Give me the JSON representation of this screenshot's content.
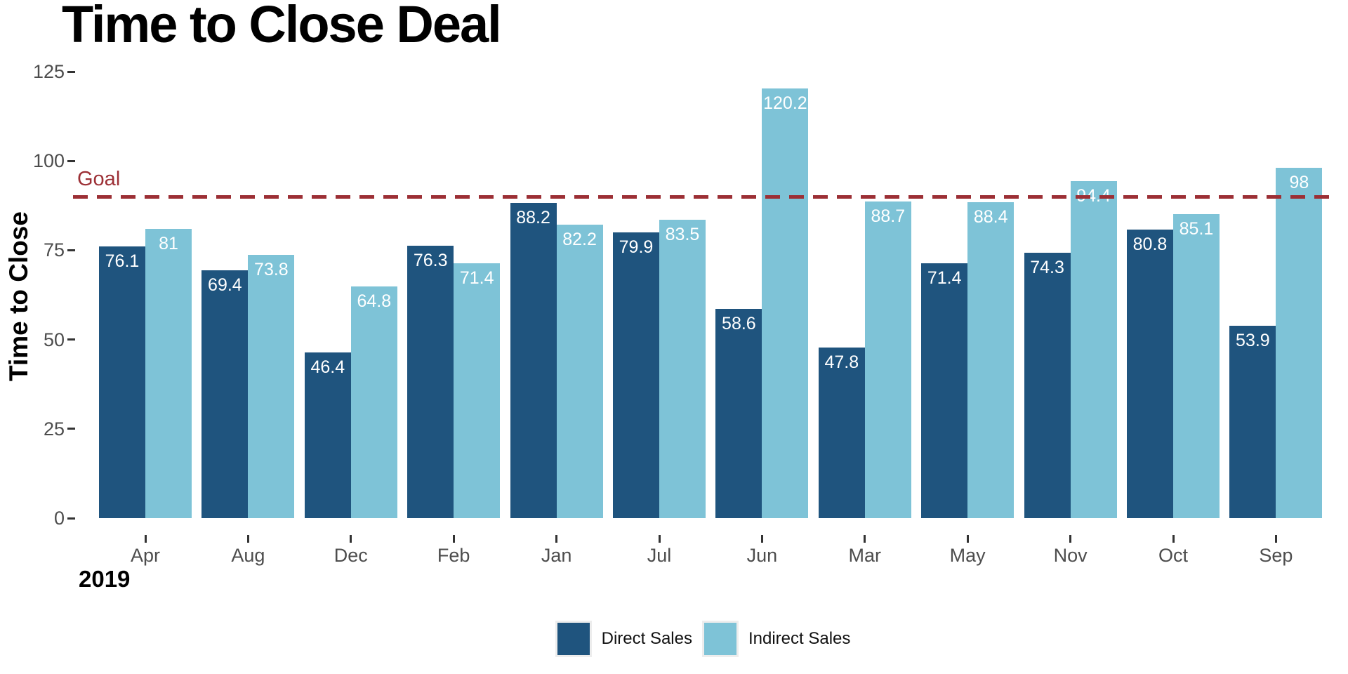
{
  "title": "Time to Close Deal",
  "axes": {
    "y_label": "Time to Close",
    "y_ticks": [
      0,
      25,
      50,
      75,
      100,
      125
    ],
    "x_label_year": "2019"
  },
  "goal": {
    "label": "Goal",
    "value": 90
  },
  "legend": [
    {
      "name": "Direct Sales",
      "color": "#1F547E"
    },
    {
      "name": "Indirect Sales",
      "color": "#7EC3D7"
    }
  ],
  "colors": {
    "direct": "#1F547E",
    "indirect": "#7EC3D7",
    "goal": "#9C2F35",
    "axis_text": "#4D4D4D",
    "tick_mark": "#333333",
    "bar_label": "#FFFFFF"
  },
  "chart_data": {
    "type": "bar",
    "title": "Time to Close Deal",
    "xlabel": "2019",
    "ylabel": "Time to Close",
    "ylim": [
      0,
      125
    ],
    "grid": false,
    "legend_position": "bottom",
    "goal_line": {
      "label": "Goal",
      "value": 90,
      "style": "dashed"
    },
    "categories": [
      "Apr",
      "Aug",
      "Dec",
      "Feb",
      "Jan",
      "Jul",
      "Jun",
      "Mar",
      "May",
      "Nov",
      "Oct",
      "Sep"
    ],
    "series": [
      {
        "name": "Direct Sales",
        "values": [
          76.1,
          69.4,
          46.4,
          76.3,
          88.2,
          79.9,
          58.6,
          47.8,
          71.4,
          74.3,
          80.8,
          53.9
        ]
      },
      {
        "name": "Indirect Sales",
        "values": [
          81,
          73.8,
          64.8,
          71.4,
          82.2,
          83.5,
          120.2,
          88.7,
          88.4,
          94.4,
          85.1,
          98
        ]
      }
    ]
  }
}
